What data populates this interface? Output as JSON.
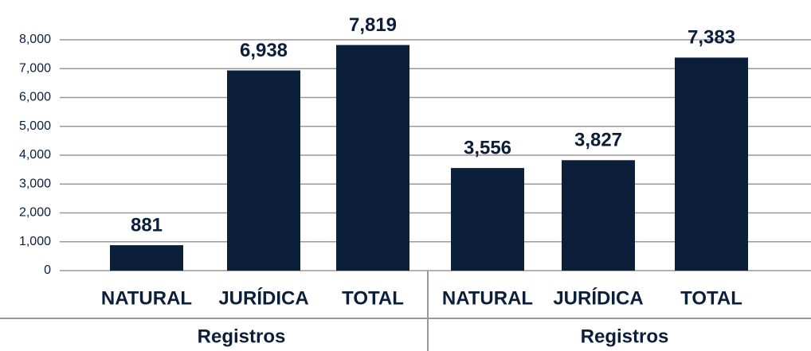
{
  "chart_data": {
    "type": "bar",
    "categories": [
      "NATURAL",
      "JURÍDICA",
      "TOTAL",
      "NATURAL",
      "JURÍDICA",
      "TOTAL"
    ],
    "groups": [
      "Registros",
      "Registros"
    ],
    "values": [
      881,
      6938,
      7819,
      3556,
      3827,
      7383
    ],
    "value_labels": [
      "881",
      "6,938",
      "7,819",
      "3,556",
      "3,827",
      "7,383"
    ],
    "color": "#0b1f3a",
    "ylim": [
      0,
      8000
    ],
    "yticks": [
      0,
      {
        "value": 1000,
        "label": "1,000"
      },
      {
        "value": 2000,
        "label": "2,000"
      },
      {
        "value": 3000,
        "label": "3,000"
      },
      {
        "value": 4000,
        "label": "4,000"
      },
      {
        "value": 5000,
        "label": "5,000"
      },
      {
        "value": 6000,
        "label": "6,000"
      },
      {
        "value": 7000,
        "label": "7,000"
      },
      {
        "value": 8000,
        "label": "8,000"
      }
    ],
    "grid": true
  }
}
